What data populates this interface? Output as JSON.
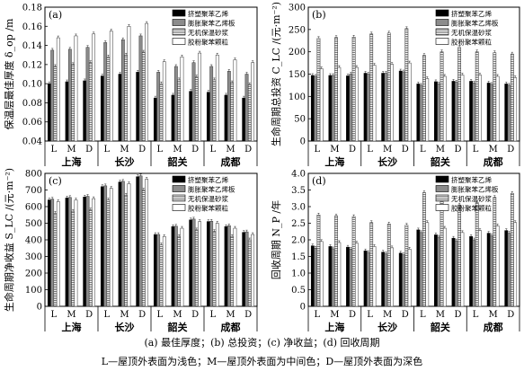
{
  "legend": [
    "挤塑聚苯乙烯",
    "膨胀聚苯乙烯板",
    "无机保温砂浆",
    "胶粉聚苯颗粒"
  ],
  "caption": {
    "line1": "(a) 最佳厚度；(b) 总投资；(c) 净收益；(d) 回收周期",
    "line2": "L—屋顶外表面为浅色；M—屋顶外表面为中间色；D—屋顶外表面为深色"
  },
  "chart_data": [
    {
      "type": "bar",
      "panel": "(a)",
      "ylabel": "保温层最佳厚度 δ_op /m",
      "ylim": [
        0.04,
        0.18
      ],
      "yticks": [
        "0.04",
        "0.06",
        "0.08",
        "0.10",
        "0.12",
        "0.14",
        "0.16",
        "0.18"
      ],
      "cities": [
        "上海",
        "长沙",
        "韶关",
        "成都"
      ],
      "categories": [
        "L",
        "M",
        "D",
        "L",
        "M",
        "D",
        "L",
        "M",
        "D",
        "L",
        "M",
        "D"
      ],
      "series": [
        {
          "name": "挤塑聚苯乙烯",
          "values": [
            0.1,
            0.102,
            0.103,
            0.108,
            0.11,
            0.112,
            0.085,
            0.088,
            0.092,
            0.091,
            0.088,
            0.085
          ]
        },
        {
          "name": "膨胀聚苯乙烯板",
          "values": [
            0.135,
            0.136,
            0.138,
            0.143,
            0.146,
            0.15,
            0.112,
            0.118,
            0.122,
            0.118,
            0.113,
            0.11
          ]
        },
        {
          "name": "无机保温砂浆",
          "values": [
            0.118,
            0.12,
            0.122,
            0.128,
            0.13,
            0.133,
            0.1,
            0.104,
            0.107,
            0.104,
            0.101,
            0.099
          ]
        },
        {
          "name": "胶粉聚苯颗粒",
          "values": [
            0.148,
            0.15,
            0.152,
            0.155,
            0.16,
            0.163,
            0.123,
            0.128,
            0.132,
            0.13,
            0.125,
            0.122
          ]
        }
      ]
    },
    {
      "type": "bar",
      "panel": "(b)",
      "ylabel": "生命周期总投资 C_LC /(元·m⁻²)",
      "ylim": [
        0,
        300
      ],
      "yticks": [
        "0",
        "50",
        "100",
        "150",
        "200",
        "250",
        "300"
      ],
      "cities": [
        "上海",
        "长沙",
        "韶关",
        "成都"
      ],
      "categories": [
        "L",
        "M",
        "D",
        "L",
        "M",
        "D",
        "L",
        "M",
        "D",
        "L",
        "M",
        "D"
      ],
      "series": [
        {
          "name": "挤塑聚苯乙烯",
          "values": [
            147,
            147,
            146,
            152,
            152,
            157,
            128,
            133,
            134,
            134,
            130,
            128
          ]
        },
        {
          "name": "膨胀聚苯乙烯板",
          "values": [
            145,
            147,
            150,
            150,
            152,
            155,
            125,
            128,
            132,
            130,
            127,
            125
          ]
        },
        {
          "name": "无机保温砂浆",
          "values": [
            230,
            232,
            233,
            240,
            242,
            252,
            192,
            200,
            210,
            200,
            198,
            195
          ]
        },
        {
          "name": "胶粉聚苯颗粒",
          "values": [
            162,
            165,
            165,
            170,
            172,
            175,
            140,
            145,
            148,
            148,
            145,
            142
          ]
        }
      ]
    },
    {
      "type": "bar",
      "panel": "(c)",
      "ylabel": "生命周期净收益 S_LC /(元·m⁻²)",
      "ylim": [
        0,
        800
      ],
      "yticks": [
        "0",
        "100",
        "200",
        "300",
        "400",
        "500",
        "600",
        "700",
        "800"
      ],
      "cities": [
        "上海",
        "长沙",
        "韶关",
        "成都"
      ],
      "categories": [
        "L",
        "M",
        "D",
        "L",
        "M",
        "D",
        "L",
        "M",
        "D",
        "L",
        "M",
        "D"
      ],
      "series": [
        {
          "name": "挤塑聚苯乙烯",
          "values": [
            640,
            652,
            658,
            720,
            748,
            780,
            432,
            480,
            520,
            510,
            480,
            445
          ]
        },
        {
          "name": "膨胀聚苯乙烯板",
          "values": [
            645,
            655,
            662,
            725,
            752,
            785,
            432,
            482,
            525,
            512,
            485,
            448
          ]
        },
        {
          "name": "无机保温砂浆",
          "values": [
            560,
            572,
            580,
            640,
            668,
            700,
            370,
            420,
            460,
            450,
            420,
            400
          ]
        },
        {
          "name": "胶粉聚苯颗粒",
          "values": [
            630,
            640,
            648,
            710,
            738,
            765,
            420,
            470,
            510,
            500,
            470,
            432
          ]
        }
      ]
    },
    {
      "type": "bar",
      "panel": "(d)",
      "ylabel": "回收周期 N_P /年",
      "ylim": [
        0,
        4.0
      ],
      "yticks": [
        "0",
        "0.5",
        "1.0",
        "1.5",
        "2.0",
        "2.5",
        "3.0",
        "3.5",
        "4.0"
      ],
      "cities": [
        "上海",
        "长沙",
        "韶关",
        "成都"
      ],
      "categories": [
        "L",
        "M",
        "D",
        "L",
        "M",
        "D",
        "L",
        "M",
        "D",
        "L",
        "M",
        "D"
      ],
      "series": [
        {
          "name": "挤塑聚苯乙烯",
          "values": [
            1.82,
            1.8,
            1.78,
            1.67,
            1.63,
            1.6,
            2.3,
            2.15,
            2.05,
            2.1,
            2.2,
            2.28
          ]
        },
        {
          "name": "膨胀聚苯乙烯板",
          "values": [
            1.75,
            1.73,
            1.72,
            1.62,
            1.58,
            1.55,
            2.22,
            2.08,
            1.97,
            2.0,
            2.12,
            2.2
          ]
        },
        {
          "name": "无机保温砂浆",
          "values": [
            2.75,
            2.72,
            2.7,
            2.52,
            2.48,
            2.44,
            3.42,
            3.2,
            3.05,
            3.12,
            3.28,
            3.4
          ]
        },
        {
          "name": "胶粉聚苯颗粒",
          "values": [
            1.95,
            1.92,
            1.9,
            1.8,
            1.76,
            1.72,
            2.52,
            2.35,
            2.22,
            2.28,
            2.42,
            2.52
          ]
        }
      ]
    }
  ]
}
